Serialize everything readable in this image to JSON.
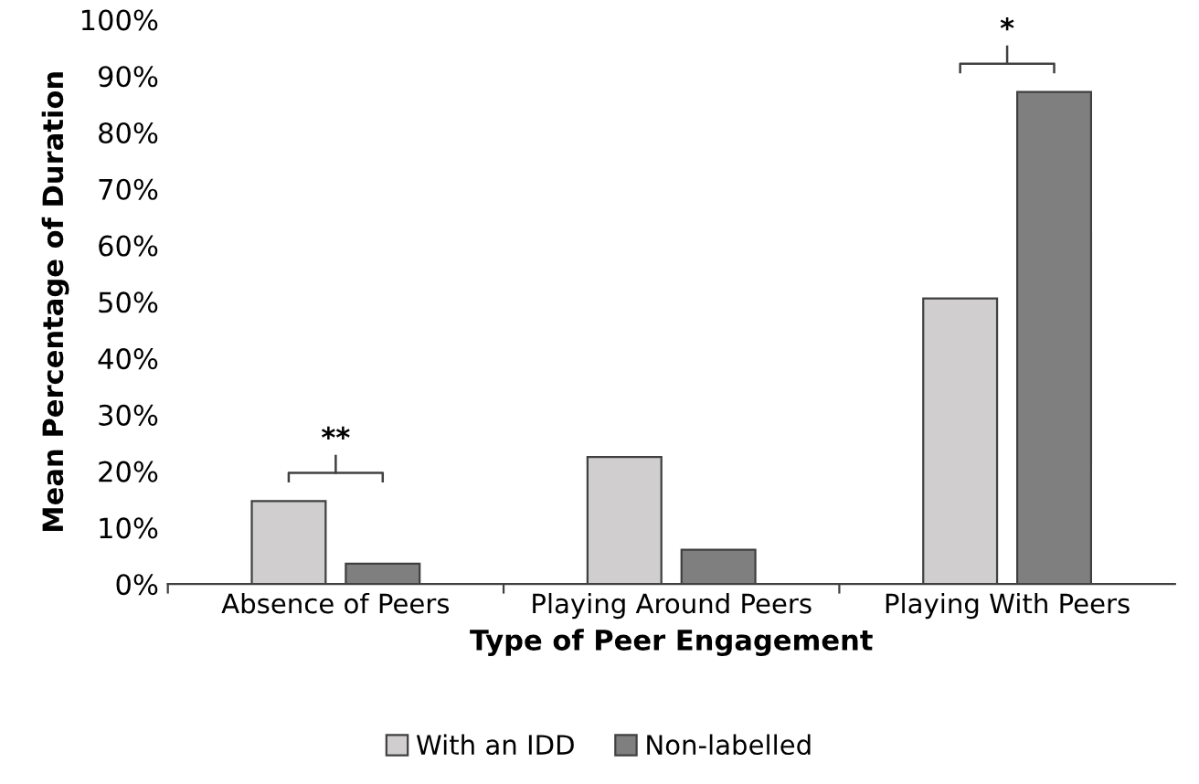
{
  "chart_data": {
    "type": "bar",
    "xlabel": "Type of Peer Engagement",
    "ylabel": "Mean Percentage of Duration",
    "categories": [
      "Absence of Peers",
      "Playing Around Peers",
      "Playing With Peers"
    ],
    "series": [
      {
        "name": "With an IDD",
        "color": "#d0cece",
        "values": [
          14.7,
          22.5,
          50.6
        ]
      },
      {
        "name": "Non-labelled",
        "color": "#7f7f7f",
        "values": [
          3.6,
          6.1,
          87.2
        ]
      }
    ],
    "ylim": [
      0,
      100
    ],
    "yticks": [
      {
        "value": 0,
        "label": "0%"
      },
      {
        "value": 10,
        "label": "10%"
      },
      {
        "value": 20,
        "label": "20%"
      },
      {
        "value": 30,
        "label": "30%"
      },
      {
        "value": 40,
        "label": "40%"
      },
      {
        "value": 50,
        "label": "50%"
      },
      {
        "value": 60,
        "label": "60%"
      },
      {
        "value": 70,
        "label": "70%"
      },
      {
        "value": 80,
        "label": "80%"
      },
      {
        "value": 90,
        "label": "90%"
      },
      {
        "value": 100,
        "label": "100%"
      }
    ],
    "annotations": [
      "**",
      "*"
    ],
    "legend": "bottom",
    "grid": false
  }
}
